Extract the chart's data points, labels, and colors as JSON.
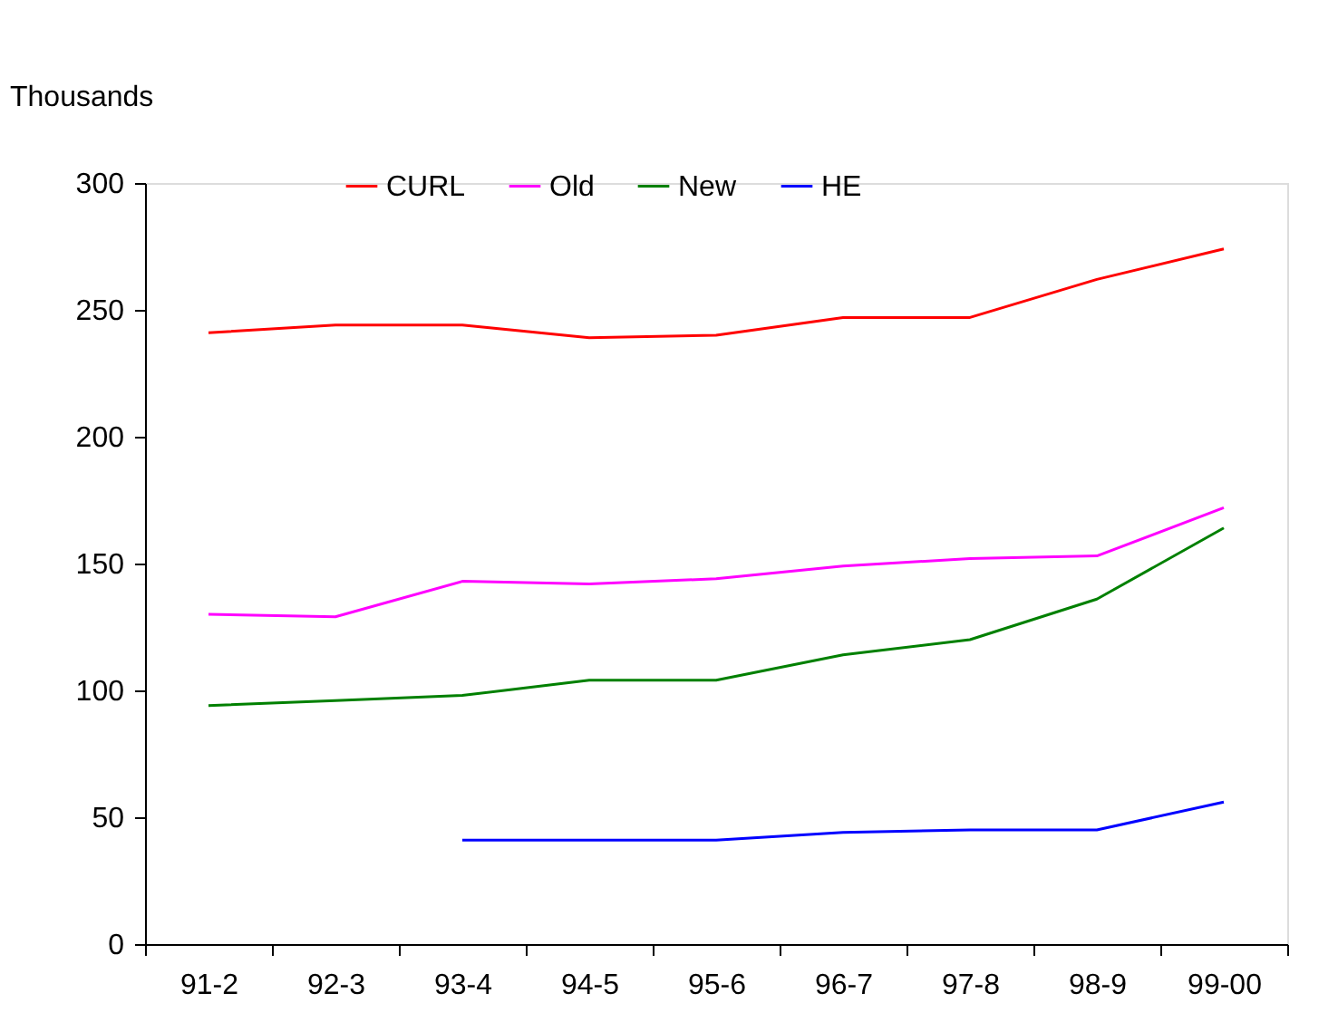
{
  "chart_data": {
    "type": "line",
    "ylabel": "Thousands",
    "categories": [
      "91-2",
      "92-3",
      "93-4",
      "94-5",
      "95-6",
      "96-7",
      "97-8",
      "98-9",
      "99-00"
    ],
    "series": [
      {
        "name": "CURL",
        "color": "#ff0000",
        "values": [
          241,
          244,
          244,
          239,
          240,
          247,
          247,
          262,
          274
        ]
      },
      {
        "name": "Old",
        "color": "#ff00ff",
        "values": [
          130,
          129,
          143,
          142,
          144,
          149,
          152,
          153,
          172
        ]
      },
      {
        "name": "New",
        "color": "#008000",
        "values": [
          94,
          96,
          98,
          104,
          104,
          114,
          120,
          136,
          164
        ]
      },
      {
        "name": "HE",
        "color": "#0000ff",
        "values": [
          null,
          null,
          41,
          41,
          41,
          44,
          45,
          45,
          56
        ]
      }
    ],
    "ylim": [
      0,
      300
    ],
    "yticks": [
      0,
      50,
      100,
      150,
      200,
      250,
      300
    ],
    "grid": false,
    "legend": "top",
    "marker": "none",
    "line_style": "solid"
  }
}
